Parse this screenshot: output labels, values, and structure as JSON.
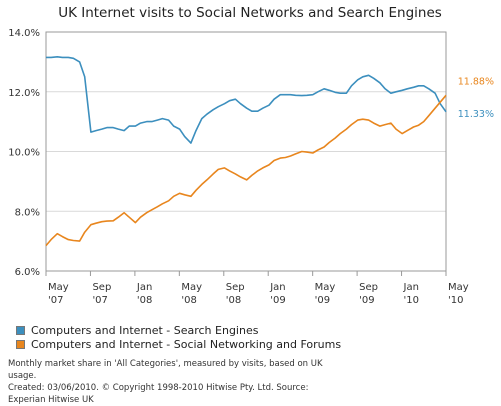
{
  "chart_data": {
    "type": "line",
    "title": "UK Internet visits to Social Networks and Search Engines",
    "xlabel": "",
    "ylabel": "",
    "ylim": [
      6.0,
      14.0
    ],
    "y_ticks": [
      "6.0%",
      "8.0%",
      "10.0%",
      "12.0%",
      "14.0%"
    ],
    "x_ticks": [
      {
        "month": "May",
        "year": "'07"
      },
      {
        "month": "Sep",
        "year": "'07"
      },
      {
        "month": "Jan",
        "year": "'08"
      },
      {
        "month": "May",
        "year": "'08"
      },
      {
        "month": "Sep",
        "year": "'08"
      },
      {
        "month": "Jan",
        "year": "'09"
      },
      {
        "month": "May",
        "year": "'09"
      },
      {
        "month": "Sep",
        "year": "'09"
      },
      {
        "month": "Jan",
        "year": "'10"
      },
      {
        "month": "May",
        "year": "'10"
      }
    ],
    "grid": true,
    "legend_position": "bottom",
    "x": [
      "2007-05-01",
      "2007-05-15",
      "2007-06-01",
      "2007-06-15",
      "2007-07-01",
      "2007-07-15",
      "2007-08-01",
      "2007-08-15",
      "2007-09-01",
      "2007-09-15",
      "2007-10-01",
      "2007-10-15",
      "2007-11-01",
      "2007-11-15",
      "2007-12-01",
      "2007-12-15",
      "2008-01-01",
      "2008-01-15",
      "2008-02-01",
      "2008-02-15",
      "2008-03-01",
      "2008-03-15",
      "2008-04-01",
      "2008-04-15",
      "2008-05-01",
      "2008-05-15",
      "2008-06-01",
      "2008-06-15",
      "2008-07-01",
      "2008-07-15",
      "2008-08-01",
      "2008-08-15",
      "2008-09-01",
      "2008-09-15",
      "2008-10-01",
      "2008-10-15",
      "2008-11-01",
      "2008-11-15",
      "2008-12-01",
      "2008-12-15",
      "2009-01-01",
      "2009-01-15",
      "2009-02-01",
      "2009-02-15",
      "2009-03-01",
      "2009-03-15",
      "2009-04-01",
      "2009-04-15",
      "2009-05-01",
      "2009-05-15",
      "2009-06-01",
      "2009-06-15",
      "2009-07-01",
      "2009-07-15",
      "2009-08-01",
      "2009-08-15",
      "2009-09-01",
      "2009-09-15",
      "2009-10-01",
      "2009-10-15",
      "2009-11-01",
      "2009-11-15",
      "2009-12-01",
      "2009-12-15",
      "2010-01-01",
      "2010-01-15",
      "2010-02-01",
      "2010-02-15",
      "2010-03-01",
      "2010-03-15",
      "2010-04-01",
      "2010-04-15",
      "2010-05-01"
    ],
    "series": [
      {
        "name": "Computers and Internet - Search Engines",
        "color": "#3c8fbe",
        "end_label": "11.33%",
        "values": [
          13.15,
          13.15,
          13.17,
          13.15,
          13.15,
          13.12,
          13.0,
          12.5,
          10.65,
          10.7,
          10.75,
          10.8,
          10.8,
          10.75,
          10.7,
          10.85,
          10.85,
          10.95,
          11.0,
          11.0,
          11.05,
          11.1,
          11.05,
          10.85,
          10.75,
          10.5,
          10.28,
          10.7,
          11.1,
          11.25,
          11.4,
          11.5,
          11.6,
          11.7,
          11.75,
          11.6,
          11.45,
          11.35,
          11.35,
          11.45,
          11.55,
          11.75,
          11.9,
          11.9,
          11.9,
          11.88,
          11.87,
          11.88,
          11.9,
          12.0,
          12.1,
          12.05,
          11.98,
          11.95,
          11.95,
          12.2,
          12.4,
          12.5,
          12.55,
          12.45,
          12.3,
          12.1,
          11.95,
          12.0,
          12.05,
          12.1,
          12.15,
          12.2,
          12.2,
          12.1,
          11.95,
          11.6,
          11.33
        ]
      },
      {
        "name": "Computers and Internet - Social Networking and Forums",
        "color": "#e8861e",
        "end_label": "11.88%",
        "values": [
          6.85,
          7.05,
          7.25,
          7.15,
          7.05,
          7.02,
          7.0,
          7.3,
          7.55,
          7.6,
          7.65,
          7.67,
          7.68,
          7.8,
          7.95,
          7.8,
          7.62,
          7.8,
          7.95,
          8.05,
          8.15,
          8.25,
          8.35,
          8.5,
          8.6,
          8.55,
          8.5,
          8.7,
          8.9,
          9.05,
          9.25,
          9.4,
          9.45,
          9.35,
          9.25,
          9.15,
          9.05,
          9.2,
          9.35,
          9.45,
          9.55,
          9.7,
          9.78,
          9.8,
          9.85,
          9.92,
          10.0,
          9.98,
          9.95,
          10.05,
          10.15,
          10.3,
          10.45,
          10.6,
          10.75,
          10.9,
          11.05,
          11.08,
          11.05,
          10.95,
          10.85,
          10.9,
          10.95,
          10.75,
          10.6,
          10.7,
          10.82,
          10.88,
          11.0,
          11.2,
          11.45,
          11.65,
          11.88
        ]
      }
    ]
  },
  "footer": {
    "line1": "Monthly market share in 'All Categories', measured by visits, based on UK",
    "line2": "usage.",
    "line3": "Created: 03/06/2010. © Copyright 1998-2010 Hitwise Pty. Ltd.    Source: Experian Hitwise UK"
  }
}
